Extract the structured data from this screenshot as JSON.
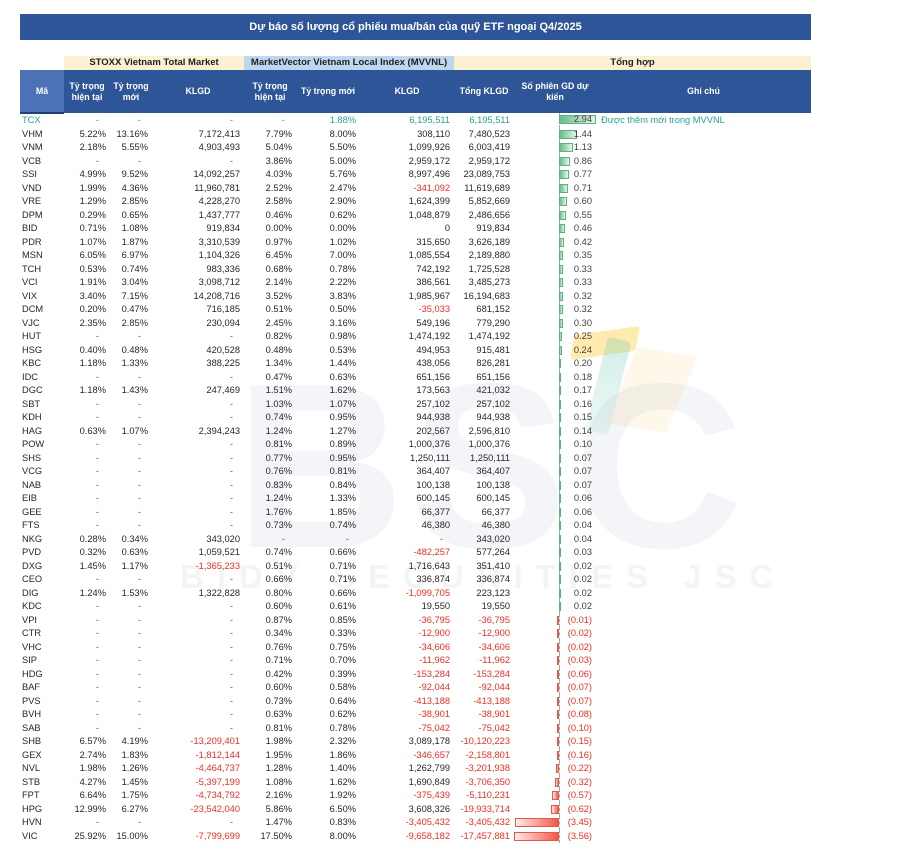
{
  "title": "Dự báo số lượng cổ phiếu mua/bán của quỹ ETF ngoại Q4/2025",
  "groups": {
    "stoxx": "STOXX Vietnam Total Market",
    "mvvnl": "MarketVector Vietnam Local Index (MVVNL)",
    "tong_hop": "Tổng hợp"
  },
  "columns": {
    "ticker": "Mã",
    "stoxx_current": "Tỷ trọng hiện tại",
    "stoxx_new": "Tỷ trọng mới",
    "stoxx_klgd": "KLGD",
    "mvvnl_current": "Tỷ trọng hiện tại",
    "mvvnl_new": "Tỷ trọng mới",
    "mvvnl_klgd": "KLGD",
    "total_klgd": "Tổng KLGD",
    "sessions": "Số phiên GD dự kiến",
    "note": "Ghi chú"
  },
  "colors": {
    "header_blue": "#2e5597",
    "header_blue_light": "#4c71b6",
    "group_cream": "#fcf0d2",
    "group_blue": "#bdd7ee",
    "positive_bar": "#69bd89",
    "negative_bar": "#f4574a",
    "negative_text": "#ee2e22",
    "highlight_text": "#2ba192"
  },
  "watermark": {
    "big": "BSC",
    "sub": "BIDV SECURITIES JSC"
  },
  "table": {
    "bar_scale": {
      "min": -3.56,
      "max": 2.94
    },
    "highlighted_ticker": "TCX",
    "rows": [
      [
        "TCX",
        "-",
        "-",
        "-",
        "-",
        "1.88%",
        "6,195,511",
        "6,195,511",
        "2.94",
        "Được thêm mới trong MVVNL"
      ],
      [
        "VHM",
        "5.22%",
        "13.16%",
        "7,172,413",
        "7.79%",
        "8.00%",
        "308,110",
        "7,480,523",
        "1.44",
        ""
      ],
      [
        "VNM",
        "2.18%",
        "5.55%",
        "4,903,493",
        "5.04%",
        "5.50%",
        "1,099,926",
        "6,003,419",
        "1.13",
        ""
      ],
      [
        "VCB",
        "-",
        "-",
        "-",
        "3.86%",
        "5.00%",
        "2,959,172",
        "2,959,172",
        "0.86",
        ""
      ],
      [
        "SSI",
        "4.99%",
        "9.52%",
        "14,092,257",
        "4.03%",
        "5.76%",
        "8,997,496",
        "23,089,753",
        "0.77",
        ""
      ],
      [
        "VND",
        "1.99%",
        "4.36%",
        "11,960,781",
        "2.52%",
        "2.47%",
        "-341,092",
        "11,619,689",
        "0.71",
        ""
      ],
      [
        "VRE",
        "1.29%",
        "2.85%",
        "4,228,270",
        "2.58%",
        "2.90%",
        "1,624,399",
        "5,852,669",
        "0.60",
        ""
      ],
      [
        "DPM",
        "0.29%",
        "0.65%",
        "1,437,777",
        "0.46%",
        "0.62%",
        "1,048,879",
        "2,486,656",
        "0.55",
        ""
      ],
      [
        "BID",
        "0.71%",
        "1.08%",
        "919,834",
        "0.00%",
        "0.00%",
        "0",
        "919,834",
        "0.46",
        ""
      ],
      [
        "PDR",
        "1.07%",
        "1.87%",
        "3,310,539",
        "0.97%",
        "1.02%",
        "315,650",
        "3,626,189",
        "0.42",
        ""
      ],
      [
        "MSN",
        "6.05%",
        "6.97%",
        "1,104,326",
        "6.45%",
        "7.00%",
        "1,085,554",
        "2,189,880",
        "0.35",
        ""
      ],
      [
        "TCH",
        "0.53%",
        "0.74%",
        "983,336",
        "0.68%",
        "0.78%",
        "742,192",
        "1,725,528",
        "0.33",
        ""
      ],
      [
        "VCI",
        "1.91%",
        "3.04%",
        "3,098,712",
        "2.14%",
        "2.22%",
        "386,561",
        "3,485,273",
        "0.33",
        ""
      ],
      [
        "VIX",
        "3.40%",
        "7.15%",
        "14,208,716",
        "3.52%",
        "3.83%",
        "1,985,967",
        "16,194,683",
        "0.32",
        ""
      ],
      [
        "DCM",
        "0.20%",
        "0.47%",
        "716,185",
        "0.51%",
        "0.50%",
        "-35,033",
        "681,152",
        "0.32",
        ""
      ],
      [
        "VJC",
        "2.35%",
        "2.85%",
        "230,094",
        "2.45%",
        "3.16%",
        "549,196",
        "779,290",
        "0.30",
        ""
      ],
      [
        "HUT",
        "-",
        "-",
        "-",
        "0.82%",
        "0.98%",
        "1,474,192",
        "1,474,192",
        "0.25",
        ""
      ],
      [
        "HSG",
        "0.40%",
        "0.48%",
        "420,528",
        "0.48%",
        "0.53%",
        "494,953",
        "915,481",
        "0.24",
        ""
      ],
      [
        "KBC",
        "1.18%",
        "1.33%",
        "388,225",
        "1.34%",
        "1.44%",
        "438,056",
        "826,281",
        "0.20",
        ""
      ],
      [
        "IDC",
        "-",
        "-",
        "-",
        "0.47%",
        "0.63%",
        "651,156",
        "651,156",
        "0.18",
        ""
      ],
      [
        "DGC",
        "1.18%",
        "1.43%",
        "247,469",
        "1.51%",
        "1.62%",
        "173,563",
        "421,032",
        "0.17",
        ""
      ],
      [
        "SBT",
        "-",
        "-",
        "-",
        "1.03%",
        "1.07%",
        "257,102",
        "257,102",
        "0.16",
        ""
      ],
      [
        "KDH",
        "-",
        "-",
        "-",
        "0.74%",
        "0.95%",
        "944,938",
        "944,938",
        "0.15",
        ""
      ],
      [
        "HAG",
        "0.63%",
        "1.07%",
        "2,394,243",
        "1.24%",
        "1.27%",
        "202,567",
        "2,596,810",
        "0.14",
        ""
      ],
      [
        "POW",
        "-",
        "-",
        "-",
        "0.81%",
        "0.89%",
        "1,000,376",
        "1,000,376",
        "0.10",
        ""
      ],
      [
        "SHS",
        "-",
        "-",
        "-",
        "0.77%",
        "0.95%",
        "1,250,111",
        "1,250,111",
        "0.07",
        ""
      ],
      [
        "VCG",
        "-",
        "-",
        "-",
        "0.76%",
        "0.81%",
        "364,407",
        "364,407",
        "0.07",
        ""
      ],
      [
        "NAB",
        "-",
        "-",
        "-",
        "0.83%",
        "0.84%",
        "100,138",
        "100,138",
        "0.07",
        ""
      ],
      [
        "EIB",
        "-",
        "-",
        "-",
        "1.24%",
        "1.33%",
        "600,145",
        "600,145",
        "0.06",
        ""
      ],
      [
        "GEE",
        "-",
        "-",
        "-",
        "1.76%",
        "1.85%",
        "66,377",
        "66,377",
        "0.06",
        ""
      ],
      [
        "FTS",
        "-",
        "-",
        "-",
        "0.73%",
        "0.74%",
        "46,380",
        "46,380",
        "0.04",
        ""
      ],
      [
        "NKG",
        "0.28%",
        "0.34%",
        "343,020",
        "-",
        "-",
        "-",
        "343,020",
        "0.04",
        ""
      ],
      [
        "PVD",
        "0.32%",
        "0.63%",
        "1,059,521",
        "0.74%",
        "0.66%",
        "-482,257",
        "577,264",
        "0.03",
        ""
      ],
      [
        "DXG",
        "1.45%",
        "1.17%",
        "-1,365,233",
        "0.51%",
        "0.71%",
        "1,716,643",
        "351,410",
        "0.02",
        ""
      ],
      [
        "CEO",
        "-",
        "-",
        "-",
        "0.66%",
        "0.71%",
        "336,874",
        "336,874",
        "0.02",
        ""
      ],
      [
        "DIG",
        "1.24%",
        "1.53%",
        "1,322,828",
        "0.80%",
        "0.66%",
        "-1,099,705",
        "223,123",
        "0.02",
        ""
      ],
      [
        "KDC",
        "-",
        "-",
        "-",
        "0.60%",
        "0.61%",
        "19,550",
        "19,550",
        "0.02",
        ""
      ],
      [
        "VPI",
        "-",
        "-",
        "-",
        "0.87%",
        "0.85%",
        "-36,795",
        "-36,795",
        "(0.01)",
        ""
      ],
      [
        "CTR",
        "-",
        "-",
        "-",
        "0.34%",
        "0.33%",
        "-12,900",
        "-12,900",
        "(0.02)",
        ""
      ],
      [
        "VHC",
        "-",
        "-",
        "-",
        "0.76%",
        "0.75%",
        "-34,606",
        "-34,606",
        "(0.02)",
        ""
      ],
      [
        "SIP",
        "-",
        "-",
        "-",
        "0.71%",
        "0.70%",
        "-11,962",
        "-11,962",
        "(0.03)",
        ""
      ],
      [
        "HDG",
        "-",
        "-",
        "-",
        "0.42%",
        "0.39%",
        "-153,284",
        "-153,284",
        "(0.06)",
        ""
      ],
      [
        "BAF",
        "-",
        "-",
        "-",
        "0.60%",
        "0.58%",
        "-92,044",
        "-92,044",
        "(0.07)",
        ""
      ],
      [
        "PVS",
        "-",
        "-",
        "-",
        "0.73%",
        "0.64%",
        "-413,188",
        "-413,188",
        "(0.07)",
        ""
      ],
      [
        "BVH",
        "-",
        "-",
        "-",
        "0.63%",
        "0.62%",
        "-38,901",
        "-38,901",
        "(0.08)",
        ""
      ],
      [
        "SAB",
        "-",
        "-",
        "-",
        "0.81%",
        "0.78%",
        "-75,042",
        "-75,042",
        "(0.10)",
        ""
      ],
      [
        "SHB",
        "6.57%",
        "4.19%",
        "-13,209,401",
        "1.98%",
        "2.32%",
        "3,089,178",
        "-10,120,223",
        "(0.15)",
        ""
      ],
      [
        "GEX",
        "2.74%",
        "1.83%",
        "-1,812,144",
        "1.95%",
        "1.86%",
        "-346,657",
        "-2,158,801",
        "(0.16)",
        ""
      ],
      [
        "NVL",
        "1.98%",
        "1.26%",
        "-4,464,737",
        "1.28%",
        "1.40%",
        "1,262,799",
        "-3,201,938",
        "(0.22)",
        ""
      ],
      [
        "STB",
        "4.27%",
        "1.45%",
        "-5,397,199",
        "1.08%",
        "1.62%",
        "1,690,849",
        "-3,706,350",
        "(0.32)",
        ""
      ],
      [
        "FPT",
        "6.64%",
        "1.75%",
        "-4,734,792",
        "2.16%",
        "1.92%",
        "-375,439",
        "-5,110,231",
        "(0.57)",
        ""
      ],
      [
        "HPG",
        "12.99%",
        "6.27%",
        "-23,542,040",
        "5.86%",
        "6.50%",
        "3,608,326",
        "-19,933,714",
        "(0.62)",
        ""
      ],
      [
        "HVN",
        "-",
        "-",
        "-",
        "1.47%",
        "0.83%",
        "-3,405,432",
        "-3,405,432",
        "(3.45)",
        ""
      ],
      [
        "VIC",
        "25.92%",
        "15.00%",
        "-7,799,699",
        "17.50%",
        "8.00%",
        "-9,658,182",
        "-17,457,881",
        "(3.56)",
        ""
      ]
    ]
  }
}
